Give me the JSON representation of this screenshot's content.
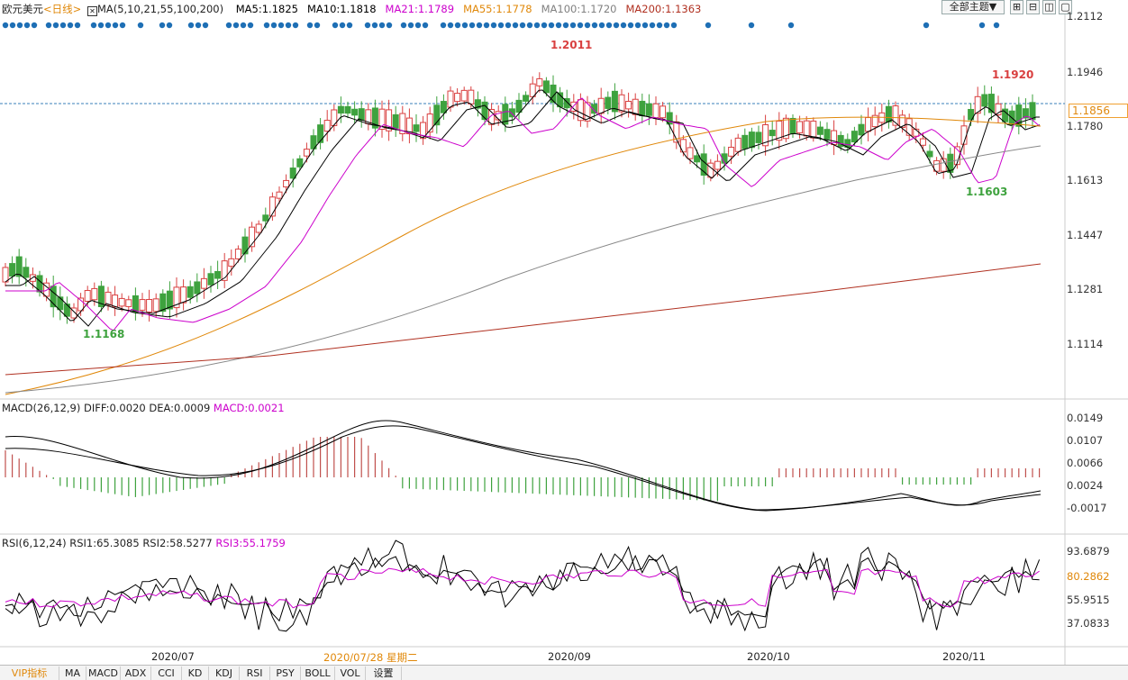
{
  "header": {
    "symbol": "欧元美元",
    "period": "<日线>",
    "ma_title": "MA(5,10,21,55,100,200)",
    "ma_values": [
      {
        "label": "MA5:1.1825",
        "color": "#000000"
      },
      {
        "label": "MA10:1.1818",
        "color": "#000000"
      },
      {
        "label": "MA21:1.1789",
        "color": "#cc00cc"
      },
      {
        "label": "MA55:1.1778",
        "color": "#e0880a"
      },
      {
        "label": "MA100:1.1720",
        "color": "#808080"
      },
      {
        "label": "MA200:1.1363",
        "color": "#b03020"
      }
    ],
    "theme_button": "全部主题▼"
  },
  "price_axis": [
    "1.2112",
    "1.1946",
    "1.1780",
    "1.1613",
    "1.1447",
    "1.1281",
    "1.1114"
  ],
  "current_price": "1.1856",
  "annotations": {
    "high": "1.2011",
    "high2": "1.1920",
    "low": "1.1603",
    "low2": "1.1168"
  },
  "macd": {
    "title": "MACD(26,12,9)",
    "diff": "DIFF:0.0020",
    "dea": "DEA:0.0009",
    "macd": "MACD:0.0021",
    "axis": [
      "0.0149",
      "0.0107",
      "0.0066",
      "0.0024",
      "-0.0017"
    ]
  },
  "rsi": {
    "title": "RSI(6,12,24)",
    "rsi1": "RSI1:65.3085",
    "rsi2": "RSI2:58.5277",
    "rsi3": "RSI3:55.1759",
    "axis": [
      "93.6879",
      "80.2862",
      "55.9515",
      "37.0833"
    ]
  },
  "x_labels": [
    "2020/07",
    "2020/07/28 星期二",
    "2020/09",
    "2020/10",
    "2020/11"
  ],
  "tabs": [
    "VIP指标",
    "MA",
    "MACD",
    "ADX",
    "CCI",
    "KD",
    "KDJ",
    "RSI",
    "PSY",
    "BOLL",
    "VOL",
    "设置"
  ],
  "colors": {
    "up": "#d94040",
    "down": "#3ea23e",
    "accent": "#e0880a",
    "dots": "#1e6fb5"
  }
}
